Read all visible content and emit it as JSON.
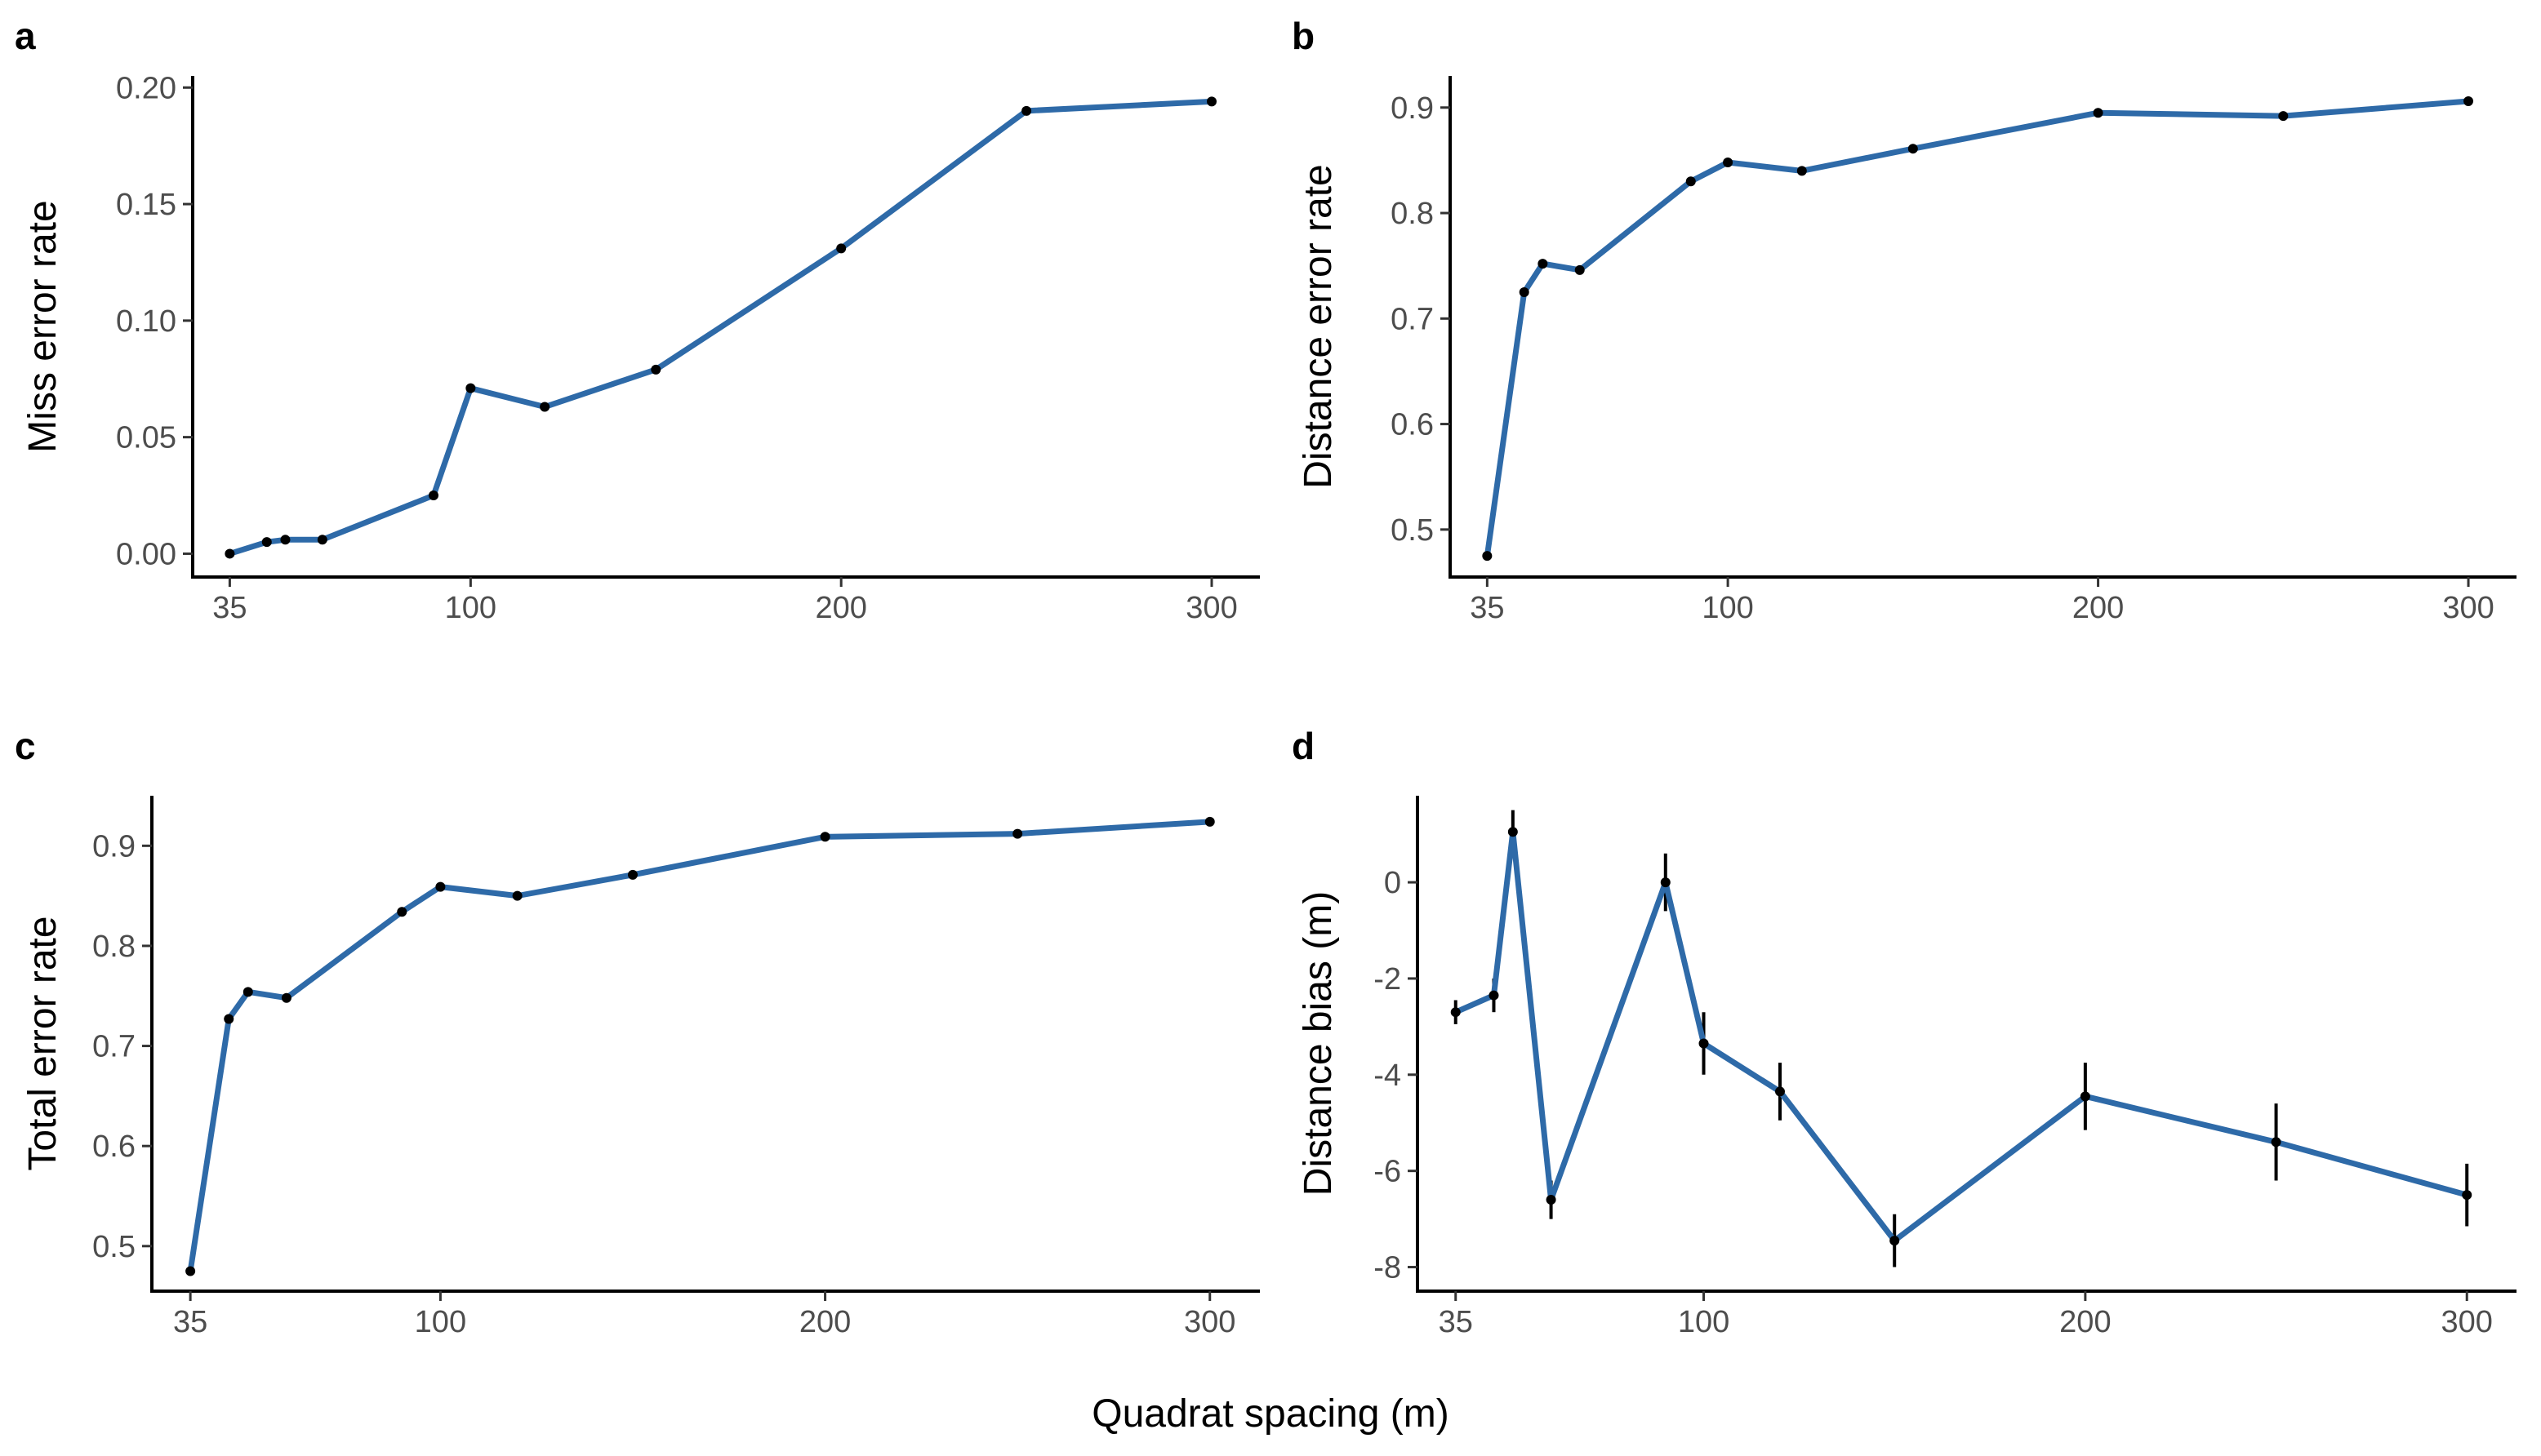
{
  "colors": {
    "line": "#2e6aa8",
    "point": "#000000"
  },
  "shared_xlabel": "Quadrat spacing (m)",
  "chart_data": [
    {
      "type": "line",
      "panel": "a",
      "ylabel": "Miss error rate",
      "x": [
        35,
        45,
        50,
        60,
        90,
        100,
        120,
        150,
        200,
        250,
        300
      ],
      "y": [
        0.0,
        0.005,
        0.006,
        0.006,
        0.025,
        0.071,
        0.063,
        0.079,
        0.131,
        0.19,
        0.194
      ],
      "xlim": [
        25,
        313
      ],
      "ylim": [
        -0.01,
        0.205
      ],
      "xticks": [
        35,
        100,
        200,
        300
      ],
      "yticks": [
        0.0,
        0.05,
        0.1,
        0.15,
        0.2
      ],
      "xtick_labels": [
        "35",
        "100",
        "200",
        "300"
      ],
      "ytick_labels": [
        "0.00",
        "0.05",
        "0.10",
        "0.15",
        "0.20"
      ]
    },
    {
      "type": "line",
      "panel": "b",
      "ylabel": "Distance error rate",
      "x": [
        35,
        45,
        50,
        60,
        90,
        100,
        120,
        150,
        200,
        250,
        300
      ],
      "y": [
        0.475,
        0.725,
        0.752,
        0.746,
        0.83,
        0.848,
        0.84,
        0.861,
        0.895,
        0.892,
        0.906
      ],
      "xlim": [
        25,
        313
      ],
      "ylim": [
        0.455,
        0.93
      ],
      "xticks": [
        35,
        100,
        200,
        300
      ],
      "yticks": [
        0.5,
        0.6,
        0.7,
        0.8,
        0.9
      ],
      "xtick_labels": [
        "35",
        "100",
        "200",
        "300"
      ],
      "ytick_labels": [
        "0.5",
        "0.6",
        "0.7",
        "0.8",
        "0.9"
      ]
    },
    {
      "type": "line",
      "panel": "c",
      "ylabel": "Total error rate",
      "x": [
        35,
        45,
        50,
        60,
        90,
        100,
        120,
        150,
        200,
        250,
        300
      ],
      "y": [
        0.475,
        0.727,
        0.754,
        0.748,
        0.834,
        0.859,
        0.85,
        0.871,
        0.909,
        0.912,
        0.924
      ],
      "xlim": [
        25,
        313
      ],
      "ylim": [
        0.455,
        0.95
      ],
      "xticks": [
        35,
        100,
        200,
        300
      ],
      "yticks": [
        0.5,
        0.6,
        0.7,
        0.8,
        0.9
      ],
      "xtick_labels": [
        "35",
        "100",
        "200",
        "300"
      ],
      "ytick_labels": [
        "0.5",
        "0.6",
        "0.7",
        "0.8",
        "0.9"
      ]
    },
    {
      "type": "line",
      "panel": "d",
      "ylabel": "Distance bias (m)",
      "x": [
        35,
        45,
        50,
        60,
        90,
        100,
        120,
        150,
        200,
        250,
        300
      ],
      "y": [
        -2.7,
        -2.35,
        1.05,
        -6.6,
        0.0,
        -3.35,
        -4.35,
        -7.45,
        -4.45,
        -5.4,
        -6.5
      ],
      "err": [
        0.25,
        0.35,
        0.45,
        0.4,
        0.6,
        0.65,
        0.6,
        0.55,
        0.7,
        0.8,
        0.65
      ],
      "xlim": [
        25,
        313
      ],
      "ylim": [
        -8.5,
        1.8
      ],
      "xticks": [
        35,
        100,
        200,
        300
      ],
      "yticks": [
        -8,
        -6,
        -4,
        -2,
        0
      ],
      "xtick_labels": [
        "35",
        "100",
        "200",
        "300"
      ],
      "ytick_labels": [
        "-8",
        "-6",
        "-4",
        "-2",
        "0"
      ]
    }
  ]
}
